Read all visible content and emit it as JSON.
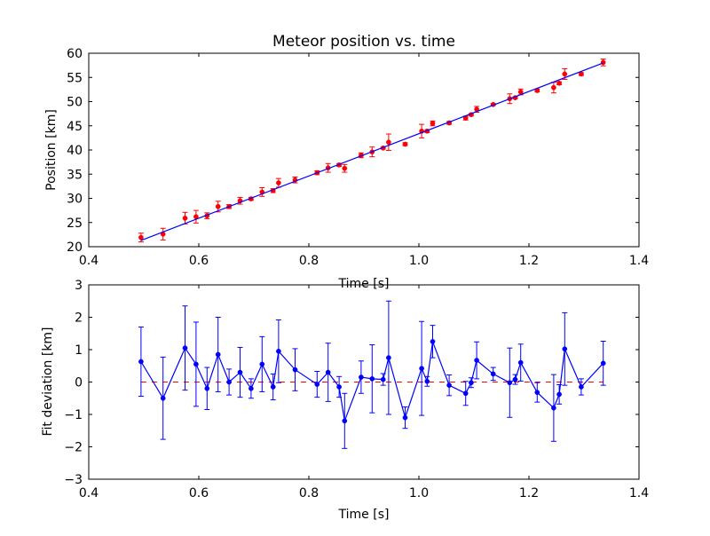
{
  "chart_data": [
    {
      "type": "scatter",
      "title": "Meteor position vs. time",
      "xlabel": "Time [s]",
      "ylabel": "Position [km]",
      "xlim": [
        0.4,
        1.4
      ],
      "ylim": [
        20,
        60
      ],
      "xticks": [
        "0.4",
        "0.6",
        "0.8",
        "1.0",
        "1.2",
        "1.4"
      ],
      "yticks": [
        "20",
        "25",
        "30",
        "35",
        "40",
        "45",
        "50",
        "55",
        "60"
      ],
      "grid": false,
      "series": [
        {
          "style": "points with error bars",
          "color": "#ff0000",
          "points": [
            {
              "x": 0.495,
              "y": 21.9,
              "err": 0.9
            },
            {
              "x": 0.535,
              "y": 22.6,
              "err": 1.2
            },
            {
              "x": 0.575,
              "y": 25.9,
              "err": 1.2
            },
            {
              "x": 0.595,
              "y": 26.2,
              "err": 1.3
            },
            {
              "x": 0.615,
              "y": 26.4,
              "err": 0.6
            },
            {
              "x": 0.635,
              "y": 28.3,
              "err": 1.1
            },
            {
              "x": 0.655,
              "y": 28.3,
              "err": 0.4
            },
            {
              "x": 0.675,
              "y": 29.5,
              "err": 0.7
            },
            {
              "x": 0.695,
              "y": 29.9,
              "err": 0.3
            },
            {
              "x": 0.715,
              "y": 31.3,
              "err": 0.9
            },
            {
              "x": 0.735,
              "y": 31.6,
              "err": 0.4
            },
            {
              "x": 0.745,
              "y": 33.2,
              "err": 0.9
            },
            {
              "x": 0.775,
              "y": 33.8,
              "err": 0.6
            },
            {
              "x": 0.815,
              "y": 35.3,
              "err": 0.4
            },
            {
              "x": 0.835,
              "y": 36.3,
              "err": 0.9
            },
            {
              "x": 0.855,
              "y": 36.9,
              "err": 0.3
            },
            {
              "x": 0.865,
              "y": 36.2,
              "err": 0.8
            },
            {
              "x": 0.895,
              "y": 38.9,
              "err": 0.5
            },
            {
              "x": 0.915,
              "y": 39.6,
              "err": 1.0
            },
            {
              "x": 0.935,
              "y": 40.4,
              "err": 0.2
            },
            {
              "x": 0.945,
              "y": 41.6,
              "err": 1.7
            },
            {
              "x": 0.975,
              "y": 41.2,
              "err": 0.3
            },
            {
              "x": 1.005,
              "y": 43.9,
              "err": 1.4
            },
            {
              "x": 1.015,
              "y": 43.9,
              "err": 0.3
            },
            {
              "x": 1.025,
              "y": 45.5,
              "err": 0.5
            },
            {
              "x": 1.055,
              "y": 45.6,
              "err": 0.3
            },
            {
              "x": 1.085,
              "y": 46.6,
              "err": 0.4
            },
            {
              "x": 1.095,
              "y": 47.3,
              "err": 0.2
            },
            {
              "x": 1.105,
              "y": 48.4,
              "err": 0.6
            },
            {
              "x": 1.135,
              "y": 49.4,
              "err": 0.2
            },
            {
              "x": 1.165,
              "y": 50.6,
              "err": 1.0
            },
            {
              "x": 1.175,
              "y": 50.8,
              "err": 0.2
            },
            {
              "x": 1.185,
              "y": 52.0,
              "err": 0.6
            },
            {
              "x": 1.215,
              "y": 52.3,
              "err": 0.3
            },
            {
              "x": 1.245,
              "y": 52.9,
              "err": 1.1
            },
            {
              "x": 1.255,
              "y": 53.8,
              "err": 0.3
            },
            {
              "x": 1.265,
              "y": 55.7,
              "err": 1.1
            },
            {
              "x": 1.295,
              "y": 55.7,
              "err": 0.3
            },
            {
              "x": 1.335,
              "y": 58.1,
              "err": 0.7
            }
          ]
        },
        {
          "style": "line",
          "color": "#0000ff",
          "points": [
            {
              "x": 0.495,
              "y": 21.3
            },
            {
              "x": 1.335,
              "y": 58.0
            }
          ]
        }
      ]
    },
    {
      "type": "line",
      "title": "",
      "xlabel": "Time [s]",
      "ylabel": "Fit deviation [km]",
      "xlim": [
        0.4,
        1.4
      ],
      "ylim": [
        -3,
        3
      ],
      "xticks": [
        "0.4",
        "0.6",
        "0.8",
        "1.0",
        "1.2",
        "1.4"
      ],
      "yticks": [
        "−3",
        "−2",
        "−1",
        "0",
        "1",
        "2",
        "3"
      ],
      "grid": false,
      "reference_line": {
        "y": 0,
        "color": "#ff0000",
        "style": "dashed"
      },
      "series": [
        {
          "style": "line with markers and error bars",
          "color": "#0000ff",
          "points": [
            {
              "x": 0.495,
              "y": 0.63,
              "err": 1.07
            },
            {
              "x": 0.535,
              "y": -0.5,
              "err": 1.27
            },
            {
              "x": 0.575,
              "y": 1.05,
              "err": 1.3
            },
            {
              "x": 0.595,
              "y": 0.55,
              "err": 1.3
            },
            {
              "x": 0.615,
              "y": -0.2,
              "err": 0.65
            },
            {
              "x": 0.635,
              "y": 0.85,
              "err": 1.15
            },
            {
              "x": 0.655,
              "y": 0.0,
              "err": 0.4
            },
            {
              "x": 0.675,
              "y": 0.3,
              "err": 0.77
            },
            {
              "x": 0.695,
              "y": -0.2,
              "err": 0.3
            },
            {
              "x": 0.715,
              "y": 0.55,
              "err": 0.85
            },
            {
              "x": 0.735,
              "y": -0.15,
              "err": 0.4
            },
            {
              "x": 0.745,
              "y": 0.95,
              "err": 0.97
            },
            {
              "x": 0.775,
              "y": 0.38,
              "err": 0.65
            },
            {
              "x": 0.815,
              "y": -0.07,
              "err": 0.4
            },
            {
              "x": 0.835,
              "y": 0.3,
              "err": 0.9
            },
            {
              "x": 0.855,
              "y": -0.15,
              "err": 0.32
            },
            {
              "x": 0.865,
              "y": -1.2,
              "err": 0.85
            },
            {
              "x": 0.895,
              "y": 0.15,
              "err": 0.5
            },
            {
              "x": 0.915,
              "y": 0.1,
              "err": 1.05
            },
            {
              "x": 0.935,
              "y": 0.08,
              "err": 0.18
            },
            {
              "x": 0.945,
              "y": 0.75,
              "err": 1.75
            },
            {
              "x": 0.975,
              "y": -1.1,
              "err": 0.33
            },
            {
              "x": 1.005,
              "y": 0.42,
              "err": 1.45
            },
            {
              "x": 1.015,
              "y": 0.02,
              "err": 0.15
            },
            {
              "x": 1.025,
              "y": 1.25,
              "err": 0.5
            },
            {
              "x": 1.055,
              "y": -0.1,
              "err": 0.32
            },
            {
              "x": 1.085,
              "y": -0.35,
              "err": 0.37
            },
            {
              "x": 1.095,
              "y": -0.02,
              "err": 0.15
            },
            {
              "x": 1.105,
              "y": 0.67,
              "err": 0.57
            },
            {
              "x": 1.135,
              "y": 0.25,
              "err": 0.2
            },
            {
              "x": 1.165,
              "y": -0.02,
              "err": 1.07
            },
            {
              "x": 1.175,
              "y": 0.08,
              "err": 0.15
            },
            {
              "x": 1.185,
              "y": 0.6,
              "err": 0.57
            },
            {
              "x": 1.215,
              "y": -0.32,
              "err": 0.3
            },
            {
              "x": 1.245,
              "y": -0.8,
              "err": 1.03
            },
            {
              "x": 1.255,
              "y": -0.38,
              "err": 0.3
            },
            {
              "x": 1.265,
              "y": 1.02,
              "err": 1.12
            },
            {
              "x": 1.295,
              "y": -0.15,
              "err": 0.25
            },
            {
              "x": 1.335,
              "y": 0.58,
              "err": 0.68
            }
          ]
        }
      ]
    }
  ]
}
